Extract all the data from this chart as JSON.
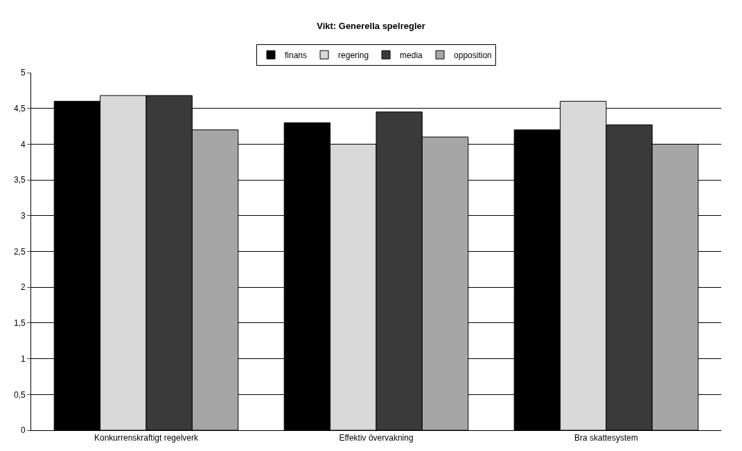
{
  "chart_data": {
    "type": "bar",
    "title": "Vikt: Generella spelregler",
    "categories": [
      "Konkurrenskraftigt regelverk",
      "Effektiv övervakning",
      "Bra skattesystem"
    ],
    "series": [
      {
        "name": "finans",
        "color": "#000000",
        "values": [
          4.6,
          4.3,
          4.2
        ]
      },
      {
        "name": "regering",
        "color": "#d9d9d9",
        "values": [
          4.68,
          4.0,
          4.6
        ]
      },
      {
        "name": "media",
        "color": "#3a3a3a",
        "values": [
          4.68,
          4.45,
          4.27
        ]
      },
      {
        "name": "opposition",
        "color": "#a6a6a6",
        "values": [
          4.2,
          4.1,
          4.0
        ]
      }
    ],
    "ylim": [
      0,
      5
    ],
    "yticks": [
      0,
      {
        "value": 0.5,
        "label": "0,5"
      },
      1,
      {
        "value": 1.5,
        "label": "1,5"
      },
      2,
      {
        "value": 2.5,
        "label": "2,5"
      },
      3,
      {
        "value": 3.5,
        "label": "3,5"
      },
      4,
      {
        "value": 4.5,
        "label": "4,5"
      },
      5
    ],
    "grid": "y",
    "legend": "top"
  }
}
